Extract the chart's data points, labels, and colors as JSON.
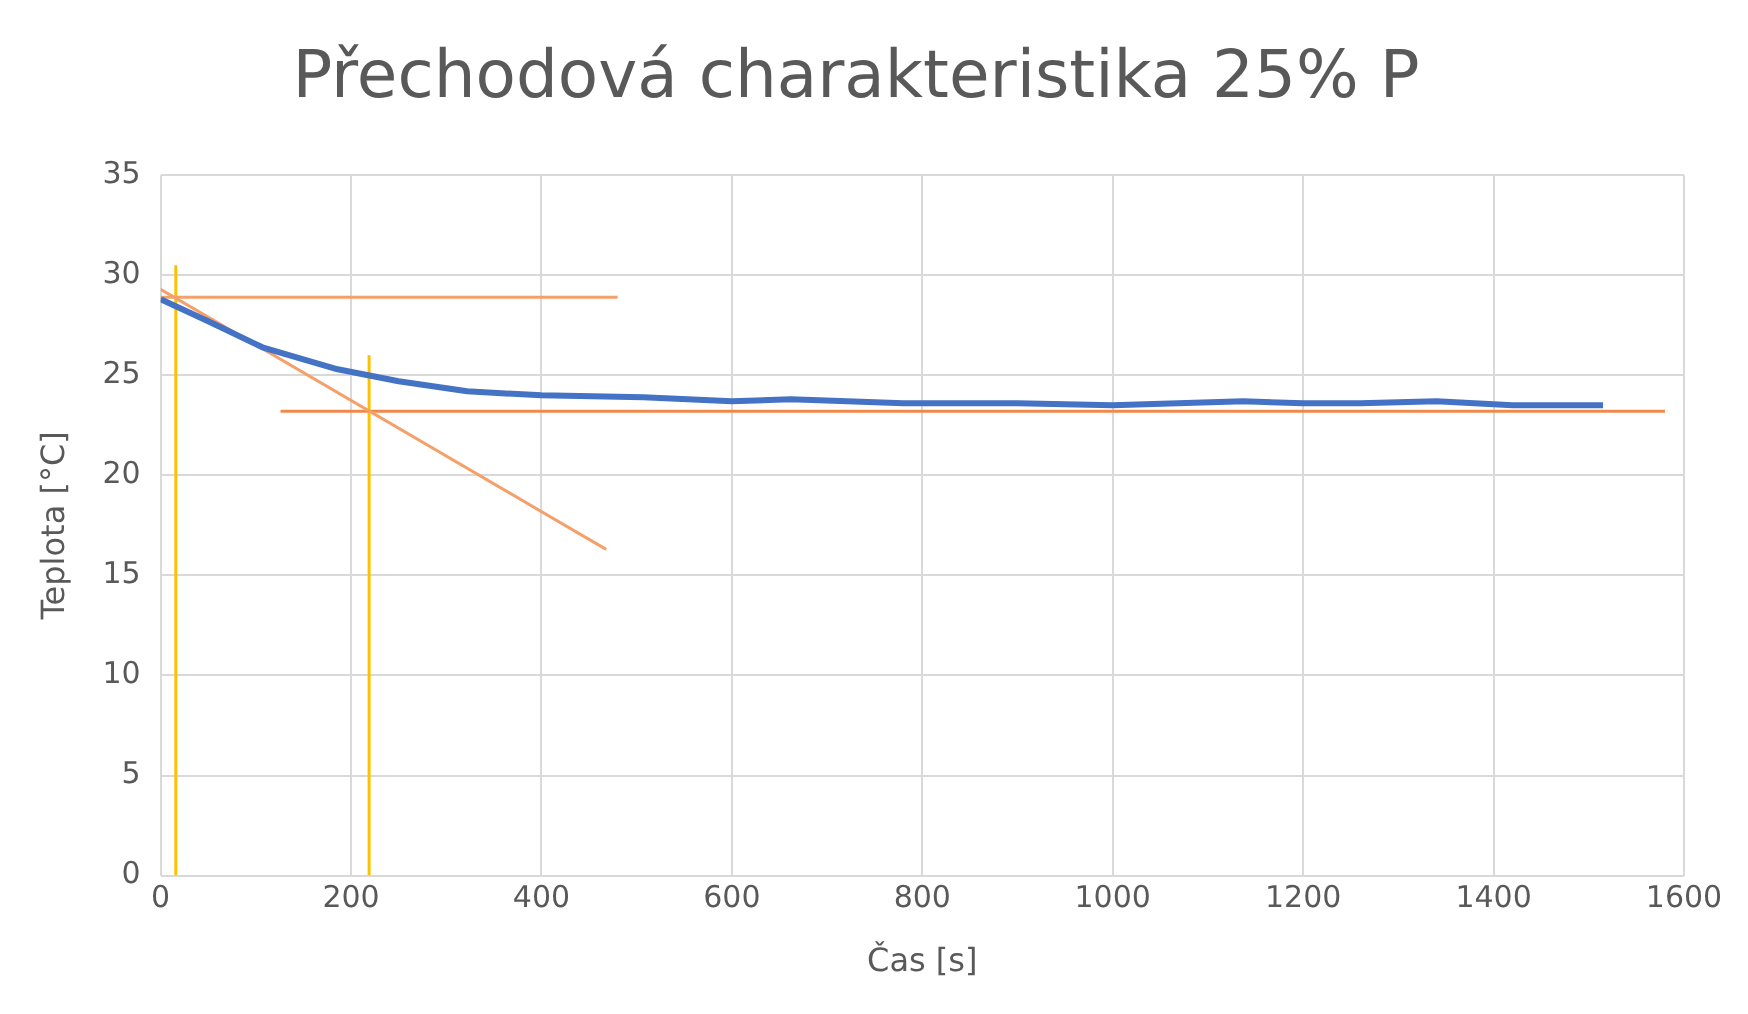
{
  "chart_data": {
    "type": "line",
    "title": "Přechodová charakteristika 25% P",
    "xlabel": "Čas [s]",
    "ylabel": "Teplota [°C]",
    "xlim": [
      0,
      1600
    ],
    "xticks": [
      0,
      200,
      400,
      600,
      800,
      1000,
      1200,
      1400,
      1600
    ],
    "ylim": [
      0,
      35
    ],
    "yticks": [
      0,
      5,
      10,
      15,
      20,
      25,
      30,
      35
    ],
    "grid": true,
    "legend": false,
    "marker": "none",
    "series": [
      {
        "color": "#4472c4",
        "x": [
          0,
          50,
          107,
          150,
          186,
          250,
          322,
          400,
          507,
          600,
          662,
          780,
          900,
          1000,
          1137,
          1200,
          1260,
          1340,
          1420,
          1515
        ],
        "values": [
          28.8,
          27.7,
          26.4,
          25.8,
          25.3,
          24.7,
          24.2,
          24.0,
          23.9,
          23.7,
          23.8,
          23.6,
          23.6,
          23.5,
          23.7,
          23.6,
          23.6,
          23.7,
          23.5,
          23.5
        ]
      },
      {
        "color": "#f4a06a",
        "x": [
          0,
          480
        ],
        "values": [
          28.9,
          28.9
        ]
      },
      {
        "color": "#f4a06a",
        "x": [
          0,
          468
        ],
        "values": [
          29.3,
          16.3
        ]
      },
      {
        "color": "#f08a4b",
        "x": [
          126,
          1580
        ],
        "values": [
          23.2,
          23.2
        ]
      },
      {
        "color": "#ffc000",
        "x": [
          16,
          16
        ],
        "values": [
          0,
          30.5
        ]
      },
      {
        "color": "#ffc000",
        "x": [
          219,
          219
        ],
        "values": [
          0,
          26.0
        ]
      }
    ]
  }
}
